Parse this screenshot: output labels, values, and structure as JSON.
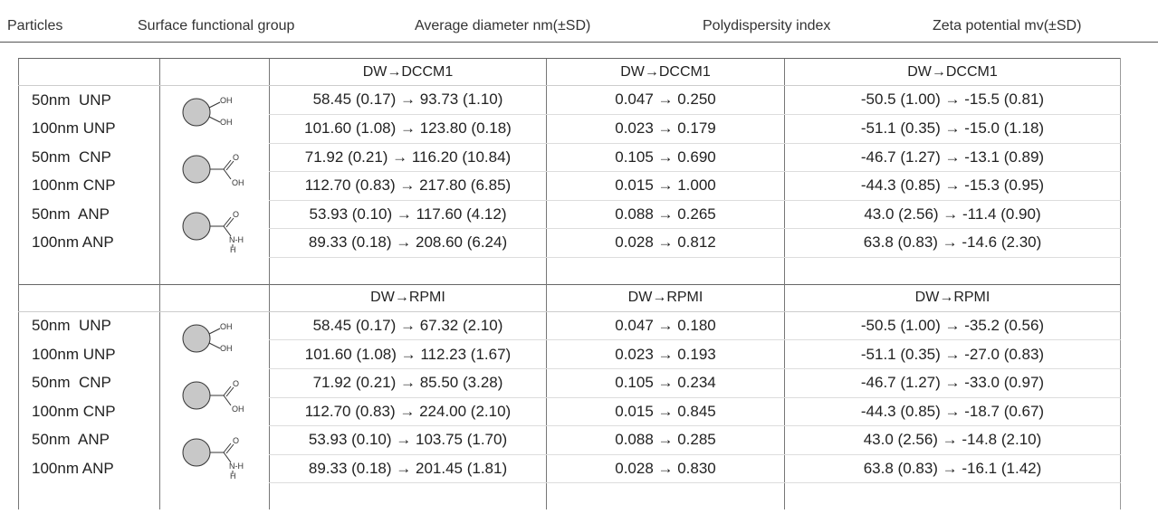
{
  "header": {
    "columns": [
      "Particles",
      "Surface functional group",
      "Average diameter nm(±SD)",
      "Polydispersity index",
      "Zeta potential mv(±SD)"
    ]
  },
  "groups": [
    {
      "labels": [
        "OH",
        "OH"
      ]
    },
    {
      "labels": [
        "O",
        "OH"
      ]
    },
    {
      "labels": [
        "O",
        "N-H",
        "H"
      ]
    }
  ],
  "sections": [
    {
      "subheaders": [
        "DW→DCCM1",
        "DW→DCCM1",
        "DW→DCCM1"
      ],
      "rows": [
        {
          "particle": "50nm  UNP",
          "diameter": "58.45 (0.17) → 93.73 (1.10)",
          "pdi": "0.047 → 0.250",
          "zeta": "-50.5 (1.00) → -15.5 (0.81)"
        },
        {
          "particle": "100nm UNP",
          "diameter": "101.60 (1.08) → 123.80 (0.18)",
          "pdi": "0.023 → 0.179",
          "zeta": "-51.1 (0.35) → -15.0 (1.18)"
        },
        {
          "particle": "50nm  CNP",
          "diameter": "71.92 (0.21) → 116.20 (10.84)",
          "pdi": "0.105 → 0.690",
          "zeta": "-46.7 (1.27) → -13.1 (0.89)"
        },
        {
          "particle": "100nm CNP",
          "diameter": "112.70 (0.83) → 217.80 (6.85)",
          "pdi": "0.015 → 1.000",
          "zeta": "-44.3 (0.85) → -15.3 (0.95)"
        },
        {
          "particle": "50nm  ANP",
          "diameter": "53.93 (0.10) → 117.60 (4.12)",
          "pdi": "0.088 → 0.265",
          "zeta": "43.0 (2.56) → -11.4 (0.90)"
        },
        {
          "particle": "100nm ANP",
          "diameter": "89.33 (0.18) → 208.60 (6.24)",
          "pdi": "0.028 → 0.812",
          "zeta": "63.8 (0.83) → -14.6 (2.30)"
        }
      ]
    },
    {
      "subheaders": [
        "DW→RPMI",
        "DW→RPMI",
        "DW→RPMI"
      ],
      "rows": [
        {
          "particle": "50nm  UNP",
          "diameter": "58.45 (0.17) → 67.32 (2.10)",
          "pdi": "0.047 → 0.180",
          "zeta": "-50.5 (1.00) → -35.2 (0.56)"
        },
        {
          "particle": "100nm UNP",
          "diameter": "101.60 (1.08) → 112.23 (1.67)",
          "pdi": "0.023 → 0.193",
          "zeta": "-51.1 (0.35) → -27.0 (0.83)"
        },
        {
          "particle": "50nm  CNP",
          "diameter": "71.92 (0.21) → 85.50 (3.28)",
          "pdi": "0.105 → 0.234",
          "zeta": "-46.7 (1.27) → -33.0 (0.97)"
        },
        {
          "particle": "100nm CNP",
          "diameter": "112.70 (0.83) → 224.00 (2.10)",
          "pdi": "0.015 → 0.845",
          "zeta": "-44.3 (0.85) → -18.7 (0.67)"
        },
        {
          "particle": "50nm  ANP",
          "diameter": "53.93 (0.10) → 103.75 (1.70)",
          "pdi": "0.088 → 0.285",
          "zeta": "43.0 (2.56) → -14.8 (2.10)"
        },
        {
          "particle": "100nm ANP",
          "diameter": "89.33 (0.18) → 201.45 (1.81)",
          "pdi": "0.028 → 0.830",
          "zeta": "63.8 (0.83) → -16.1 (1.42)"
        }
      ]
    }
  ]
}
